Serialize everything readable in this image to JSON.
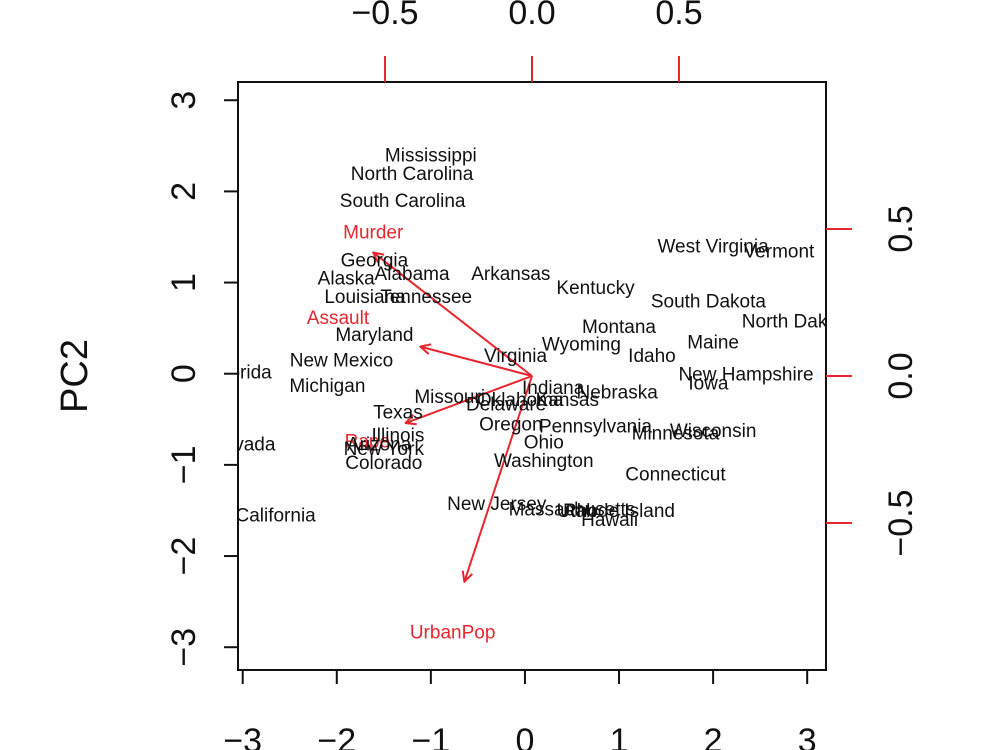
{
  "chart_data": {
    "type": "scatter",
    "title": "",
    "xlabel": "",
    "ylabel": "PC2",
    "xlim": [
      -3.05,
      3.2
    ],
    "ylim": [
      -3.25,
      3.2
    ],
    "arrow_xlim": [
      -1.0,
      1.0
    ],
    "arrow_ylim": [
      -1.0,
      1.0
    ],
    "grid": false,
    "colors": {
      "points": "#111111",
      "arrows": "#e8262e",
      "frame": "#111111"
    },
    "x_ticks": [
      {
        "v": -3,
        "label": "−3"
      },
      {
        "v": -2,
        "label": "−2"
      },
      {
        "v": -1,
        "label": "−1"
      },
      {
        "v": 0,
        "label": "0"
      },
      {
        "v": 1,
        "label": "1"
      },
      {
        "v": 2,
        "label": "2"
      },
      {
        "v": 3,
        "label": "3"
      }
    ],
    "y_ticks": [
      {
        "v": -3,
        "label": "−3"
      },
      {
        "v": -2,
        "label": "−2"
      },
      {
        "v": -1,
        "label": "−1"
      },
      {
        "v": 0,
        "label": "0"
      },
      {
        "v": 1,
        "label": "1"
      },
      {
        "v": 2,
        "label": "2"
      },
      {
        "v": 3,
        "label": "3"
      }
    ],
    "top_ticks": [
      {
        "v": -0.5,
        "label": "−0.5"
      },
      {
        "v": 0.0,
        "label": "0.0"
      },
      {
        "v": 0.5,
        "label": "0.5"
      }
    ],
    "right_ticks": [
      {
        "v": 0.5,
        "label": "0.5"
      },
      {
        "v": 0.0,
        "label": "0.0"
      },
      {
        "v": -0.5,
        "label": "−0.5"
      }
    ],
    "points": [
      {
        "label": "Mississippi",
        "x": -1.0,
        "y": 2.4
      },
      {
        "label": "North Carolina",
        "x": -1.2,
        "y": 2.2
      },
      {
        "label": "South Carolina",
        "x": -1.3,
        "y": 1.9
      },
      {
        "label": "Georgia",
        "x": -1.6,
        "y": 1.25
      },
      {
        "label": "Alaska",
        "x": -1.9,
        "y": 1.05
      },
      {
        "label": "Alabama",
        "x": -1.2,
        "y": 1.1
      },
      {
        "label": "Arkansas",
        "x": -0.15,
        "y": 1.1
      },
      {
        "label": "Kentucky",
        "x": 0.75,
        "y": 0.95
      },
      {
        "label": "Louisiana",
        "x": -1.7,
        "y": 0.85
      },
      {
        "label": "Tennessee",
        "x": -1.05,
        "y": 0.85
      },
      {
        "label": "West Virginia",
        "x": 2.0,
        "y": 1.4
      },
      {
        "label": "Vermont",
        "x": 2.7,
        "y": 1.35
      },
      {
        "label": "South Dakota",
        "x": 1.95,
        "y": 0.8
      },
      {
        "label": "North Dakota",
        "x": 2.9,
        "y": 0.58
      },
      {
        "label": "Maryland",
        "x": -1.6,
        "y": 0.43
      },
      {
        "label": "Montana",
        "x": 1.0,
        "y": 0.52
      },
      {
        "label": "Maine",
        "x": 2.0,
        "y": 0.35
      },
      {
        "label": "Wyoming",
        "x": 0.6,
        "y": 0.33
      },
      {
        "label": "Virginia",
        "x": -0.1,
        "y": 0.2
      },
      {
        "label": "Idaho",
        "x": 1.35,
        "y": 0.2
      },
      {
        "label": "New Mexico",
        "x": -1.95,
        "y": 0.15
      },
      {
        "label": "Florida",
        "x": -3.0,
        "y": 0.02
      },
      {
        "label": "New Hampshire",
        "x": 2.35,
        "y": 0.0
      },
      {
        "label": "Iowa",
        "x": 1.95,
        "y": -0.1
      },
      {
        "label": "Michigan",
        "x": -2.1,
        "y": -0.13
      },
      {
        "label": "Indiana",
        "x": 0.3,
        "y": -0.15
      },
      {
        "label": "Nebraska",
        "x": 0.98,
        "y": -0.2
      },
      {
        "label": "Missouri",
        "x": -0.8,
        "y": -0.25
      },
      {
        "label": "Oklahoma",
        "x": -0.05,
        "y": -0.28
      },
      {
        "label": "Kansas",
        "x": 0.45,
        "y": -0.28
      },
      {
        "label": "Delaware",
        "x": -0.2,
        "y": -0.33
      },
      {
        "label": "Texas",
        "x": -1.35,
        "y": -0.42
      },
      {
        "label": "Rhode Island",
        "x": 1.0,
        "y": -1.5
      },
      {
        "label": "Oregon",
        "x": -0.15,
        "y": -0.55
      },
      {
        "label": "Pennsylvania",
        "x": 0.75,
        "y": -0.57
      },
      {
        "label": "Minnesota",
        "x": 1.6,
        "y": -0.65
      },
      {
        "label": "Wisconsin",
        "x": 2.0,
        "y": -0.62
      },
      {
        "label": "Illinois",
        "x": -1.35,
        "y": -0.67
      },
      {
        "label": "Arizona",
        "x": -1.55,
        "y": -0.77
      },
      {
        "label": "New York",
        "x": -1.5,
        "y": -0.82
      },
      {
        "label": "Ohio",
        "x": 0.2,
        "y": -0.75
      },
      {
        "label": "Nevada",
        "x": -3.0,
        "y": -0.77
      },
      {
        "label": "Colorado",
        "x": -1.5,
        "y": -0.97
      },
      {
        "label": "Washington",
        "x": 0.2,
        "y": -0.95
      },
      {
        "label": "Connecticut",
        "x": 1.6,
        "y": -1.1
      },
      {
        "label": "California",
        "x": -2.65,
        "y": -1.55
      },
      {
        "label": "New Jersey",
        "x": -0.3,
        "y": -1.42
      },
      {
        "label": "Massachusetts",
        "x": 0.5,
        "y": -1.48
      },
      {
        "label": "Utah",
        "x": 0.55,
        "y": -1.5
      },
      {
        "label": "Hawaii",
        "x": 0.9,
        "y": -1.6
      }
    ],
    "arrows": [
      {
        "label": "Murder",
        "x": -0.54,
        "y": 0.42,
        "lx": -0.54,
        "ly": 0.49
      },
      {
        "label": "Assault",
        "x": -0.38,
        "y": 0.1,
        "lx": -0.66,
        "ly": 0.2
      },
      {
        "label": "Rape",
        "x": -0.43,
        "y": -0.16,
        "lx": -0.56,
        "ly": -0.22
      },
      {
        "label": "UrbanPop",
        "x": -0.23,
        "y": -0.7,
        "lx": -0.27,
        "ly": -0.87
      }
    ]
  }
}
